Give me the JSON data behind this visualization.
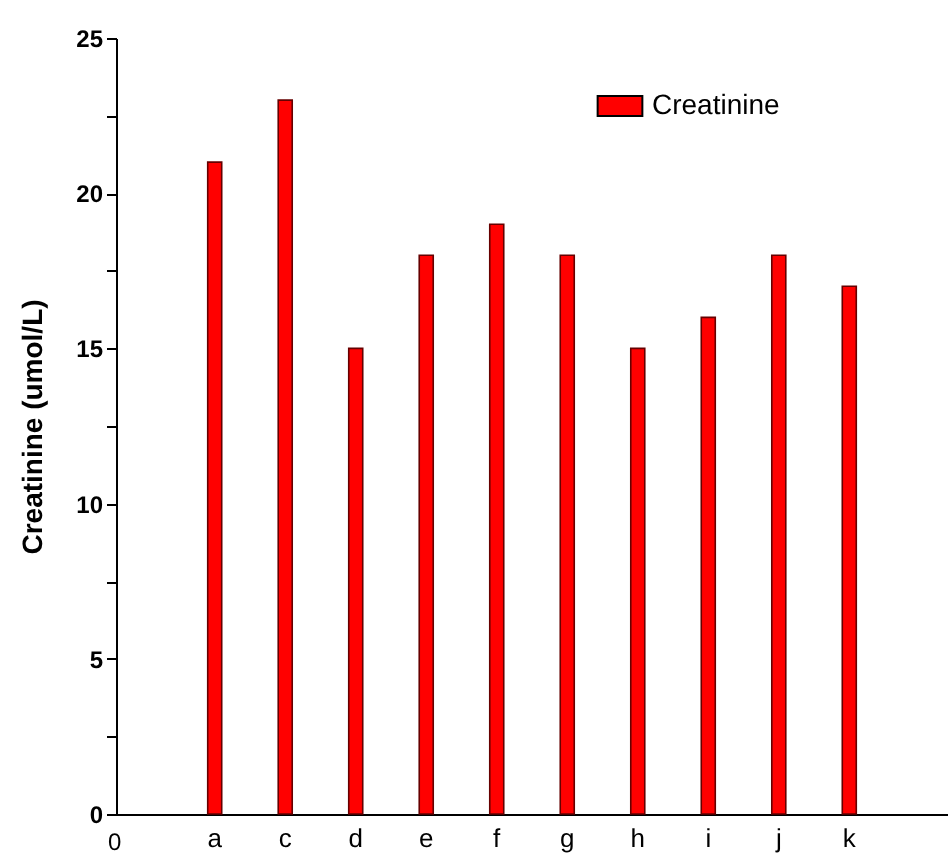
{
  "chart_data": {
    "type": "bar",
    "ylabel": "Creatinine (umol/L)",
    "categories": [
      "a",
      "c",
      "d",
      "e",
      "f",
      "g",
      "h",
      "i",
      "j",
      "k"
    ],
    "series": [
      {
        "name": "Creatinine",
        "color": "#ff0000",
        "values": [
          21,
          23,
          15,
          18,
          19,
          18,
          15,
          16,
          18,
          17
        ]
      }
    ],
    "ylim": [
      0,
      25
    ],
    "yticks": [
      0,
      {
        "value": 2.5,
        "label": null
      },
      5,
      {
        "value": 7.5,
        "label": null
      },
      10,
      {
        "value": 12.5,
        "label": null
      },
      15,
      {
        "value": 17.5,
        "label": null
      },
      20,
      {
        "value": 22.5,
        "label": null
      },
      25
    ],
    "annotations": [
      "0"
    ],
    "legend": "top right",
    "grid": false
  }
}
